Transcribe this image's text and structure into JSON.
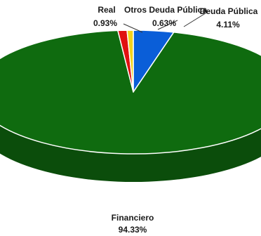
{
  "chart_data": {
    "type": "pie",
    "title": "",
    "style": "3d",
    "legend": "none",
    "slices": [
      {
        "name": "Deuda Pública",
        "value": 4.11,
        "label": "4.11%",
        "color": "#0a5ed8"
      },
      {
        "name": "Financiero",
        "value": 94.33,
        "label": "94.33%",
        "color": "#0f6b0f"
      },
      {
        "name": "Real",
        "value": 0.93,
        "label": "0.93%",
        "color": "#e01010"
      },
      {
        "name": "Otros Deuda Pública",
        "value": 0.63,
        "label": "0.63%",
        "color": "#f3d21b"
      }
    ]
  }
}
